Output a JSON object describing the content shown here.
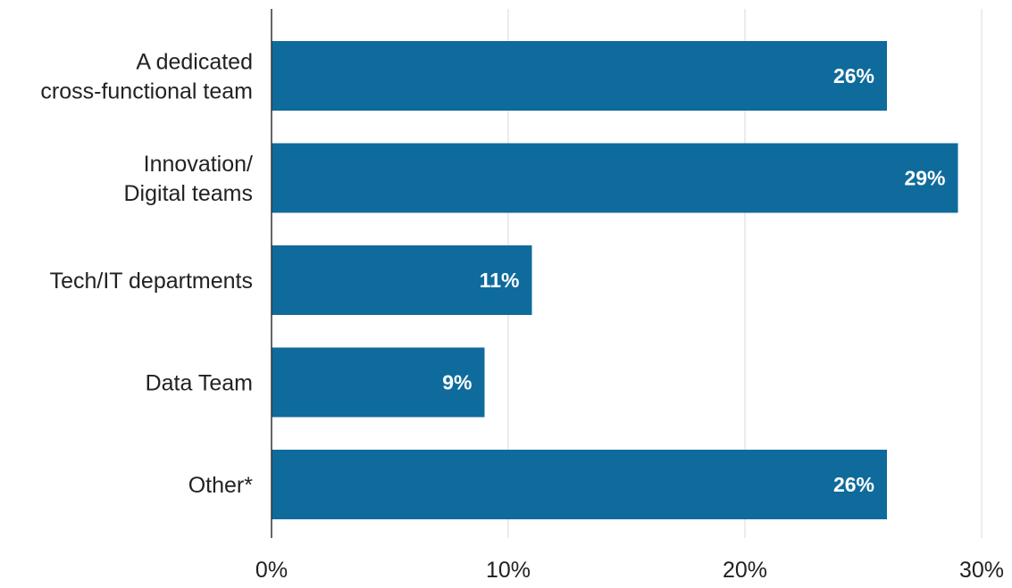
{
  "chart_data": {
    "type": "bar",
    "orientation": "horizontal",
    "categories": [
      [
        "A dedicated",
        "cross-functional team"
      ],
      [
        "Innovation/",
        "Digital teams"
      ],
      [
        "Tech/IT departments"
      ],
      [
        "Data Team"
      ],
      [
        "Other*"
      ]
    ],
    "values": [
      26,
      29,
      11,
      9,
      26
    ],
    "value_labels": [
      "26%",
      "29%",
      "11%",
      "9%",
      "26%"
    ],
    "x_ticks": [
      0,
      10,
      20,
      30
    ],
    "x_tick_labels": [
      "0%",
      "10%",
      "20%",
      "30%"
    ],
    "xlim": [
      0,
      30
    ],
    "title": "",
    "xlabel": "",
    "ylabel": "",
    "grid": "vertical",
    "legend": "none",
    "colors": {
      "bar": "#0f6b9c",
      "grid": "#d9d9d9",
      "axis": "#333333",
      "text": "#222222",
      "value_text": "#ffffff"
    }
  }
}
